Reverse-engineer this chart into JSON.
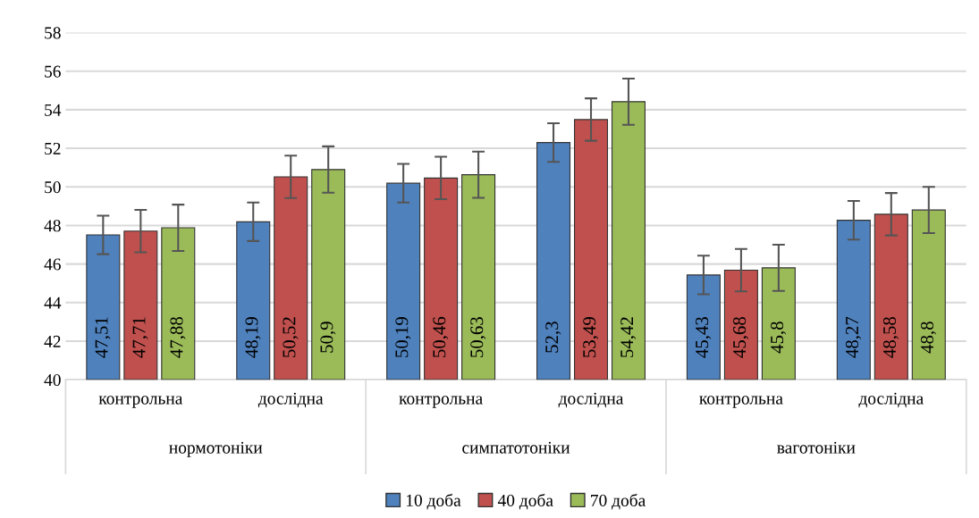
{
  "chart_data": {
    "type": "bar",
    "categories": [
      "контрольна",
      "дослідна",
      "контрольна",
      "дослідна",
      "контрольна",
      "дослідна"
    ],
    "annotations": [
      "нормотоніки",
      "симпатотоніки",
      "ваготоніки"
    ],
    "series": [
      {
        "name": "10 доба",
        "color": "#4f81bd",
        "values": [
          47.51,
          48.19,
          50.19,
          52.3,
          45.43,
          48.27
        ],
        "errors": [
          1.0,
          1.0,
          1.0,
          1.0,
          1.0,
          1.0
        ],
        "value_labels": [
          "47,51",
          "48,19",
          "50,19",
          "52,3",
          "45,43",
          "48,27"
        ]
      },
      {
        "name": "40 доба",
        "color": "#c0504d",
        "values": [
          47.71,
          50.52,
          50.46,
          53.49,
          45.68,
          48.58
        ],
        "errors": [
          1.1,
          1.1,
          1.1,
          1.1,
          1.1,
          1.1
        ],
        "value_labels": [
          "47,71",
          "50,52",
          "50,46",
          "53,49",
          "45,68",
          "48,58"
        ]
      },
      {
        "name": "70 доба",
        "color": "#9bbb59",
        "values": [
          47.88,
          50.9,
          50.63,
          54.42,
          45.8,
          48.8
        ],
        "errors": [
          1.2,
          1.2,
          1.2,
          1.2,
          1.2,
          1.2
        ],
        "value_labels": [
          "47,88",
          "50,9",
          "50,63",
          "54,42",
          "45,8",
          "48,8"
        ]
      }
    ],
    "ylim": [
      40,
      58
    ],
    "yticks": [
      40,
      42,
      44,
      46,
      48,
      50,
      52,
      54,
      56,
      58
    ],
    "grid": "y",
    "legend": "bottom"
  }
}
